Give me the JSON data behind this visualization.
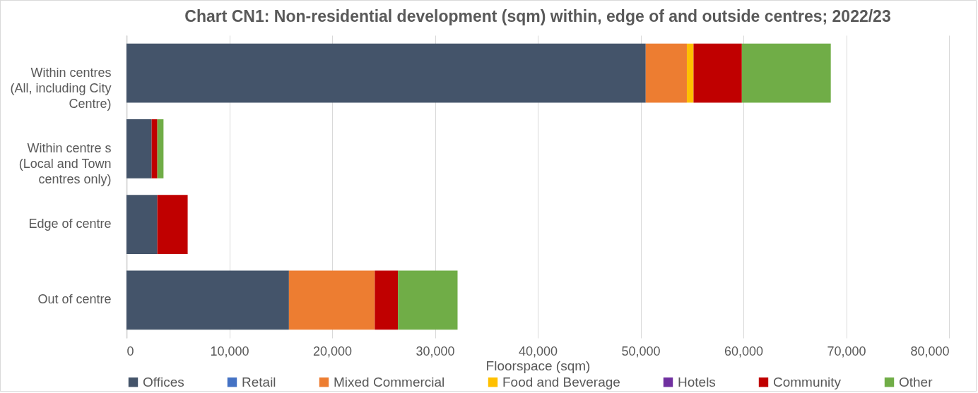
{
  "chart_data": {
    "type": "bar",
    "orientation": "horizontal",
    "stacked": true,
    "title": "Chart CN1: Non-residential development (sqm) within, edge of and outside centres; 2022/23",
    "xlabel": "Floorspace (sqm)",
    "categories": [
      "Within centres (All, including City Centre)",
      "Within centre s (Local and Town centres only)",
      "Edge of centre",
      "Out of centre"
    ],
    "series": [
      {
        "name": "Offices",
        "color": "#44546a",
        "values": [
          50500,
          2450,
          3000,
          15800
        ]
      },
      {
        "name": "Retail",
        "color": "#4472c4",
        "values": [
          0,
          0,
          0,
          0
        ]
      },
      {
        "name": "Mixed Commercial",
        "color": "#ed7d31",
        "values": [
          4000,
          0,
          0,
          8350
        ]
      },
      {
        "name": "Food and Beverage",
        "color": "#ffc000",
        "values": [
          650,
          0,
          0,
          0
        ]
      },
      {
        "name": "Hotels",
        "color": "#7030a0",
        "values": [
          0,
          0,
          0,
          0
        ]
      },
      {
        "name": "Community",
        "color": "#c00000",
        "values": [
          4700,
          550,
          2950,
          2250
        ]
      },
      {
        "name": "Other",
        "color": "#70ad47",
        "values": [
          8650,
          600,
          0,
          5800
        ]
      }
    ],
    "xlim": [
      0,
      80000
    ],
    "xticks": [
      0,
      {
        "value": 10000,
        "label": "10,000"
      },
      {
        "value": 20000,
        "label": "20,000"
      },
      {
        "value": 30000,
        "label": "30,000"
      },
      {
        "value": 40000,
        "label": "40,000"
      },
      {
        "value": 50000,
        "label": "50,000"
      },
      {
        "value": 60000,
        "label": "60,000"
      },
      {
        "value": 70000,
        "label": "70,000"
      },
      {
        "value": 80000,
        "label": "80,000"
      }
    ],
    "grid": "x",
    "legend": "bottom"
  }
}
